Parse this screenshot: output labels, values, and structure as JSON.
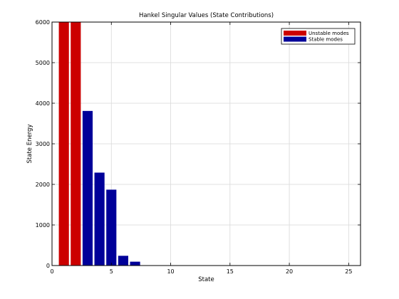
{
  "chart_data": {
    "type": "bar",
    "title": "Hankel Singular Values (State Contributions)",
    "xlabel": "State",
    "ylabel": "State Energy",
    "xlim": [
      0,
      26
    ],
    "ylim": [
      0,
      6000
    ],
    "xticks": [
      0,
      5,
      10,
      15,
      20,
      25
    ],
    "yticks": [
      0,
      1000,
      2000,
      3000,
      4000,
      5000,
      6000
    ],
    "grid": true,
    "legend_position": "top-right",
    "series": [
      {
        "name": "Unstable modes",
        "color": "#cc0000",
        "x": [
          1,
          2
        ],
        "values": [
          6000,
          6000
        ]
      },
      {
        "name": "Stable modes",
        "color": "#000099",
        "x": [
          3,
          4,
          5,
          6,
          7
        ],
        "values": [
          3810,
          2290,
          1870,
          240,
          95
        ]
      }
    ]
  }
}
